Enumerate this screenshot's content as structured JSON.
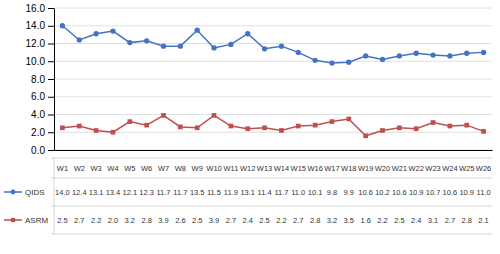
{
  "chart_data": {
    "type": "line",
    "categories": [
      "W1",
      "W2",
      "W3",
      "W4",
      "W5",
      "W6",
      "W7",
      "W8",
      "W9",
      "W10",
      "W11",
      "W12",
      "W13",
      "W14",
      "W15",
      "W16",
      "W17",
      "W18",
      "W19",
      "W20",
      "W21",
      "W22",
      "W23",
      "W24",
      "W25",
      "W26"
    ],
    "series": [
      {
        "name": "QIDS",
        "color": "#4472C4",
        "marker": "circle",
        "values": [
          14.0,
          12.4,
          13.1,
          13.4,
          12.1,
          12.3,
          11.7,
          11.7,
          13.5,
          11.5,
          11.9,
          13.1,
          11.4,
          11.7,
          11.0,
          10.1,
          9.8,
          9.9,
          10.6,
          10.2,
          10.6,
          10.9,
          10.7,
          10.6,
          10.9,
          11.0
        ],
        "value_labels": [
          "14.0",
          "12.4",
          "13.1",
          "13.4",
          "12.1",
          "12.3",
          "11.7",
          "11.7",
          "13.5",
          "11.5",
          "11.9",
          "13.1",
          "11.4",
          "11.7",
          "11.0",
          "10.1",
          "9.8",
          "9.9",
          "10.6",
          "10.2",
          "10.6",
          "10.9",
          "10.7",
          "10.6",
          "10.9",
          "11.0"
        ]
      },
      {
        "name": "ASRM",
        "color": "#C0504D",
        "marker": "square",
        "values": [
          2.5,
          2.7,
          2.2,
          2.0,
          3.2,
          2.8,
          3.9,
          2.6,
          2.5,
          3.9,
          2.7,
          2.4,
          2.5,
          2.2,
          2.7,
          2.8,
          3.2,
          3.5,
          1.6,
          2.2,
          2.5,
          2.4,
          3.1,
          2.7,
          2.8,
          2.1
        ],
        "value_labels": [
          "2.5",
          "2.7",
          "2.2",
          "2.0",
          "3.2",
          "2.8",
          "3.9",
          "2.6",
          "2.5",
          "3.9",
          "2.7",
          "2.4",
          "2.5",
          "2.2",
          "2.7",
          "2.8",
          "3.2",
          "3.5",
          "1.6",
          "2.2",
          "2.5",
          "2.4",
          "3.1",
          "2.7",
          "2.8",
          "2.1"
        ]
      }
    ],
    "ylim": [
      0.0,
      16.0
    ],
    "yticks": [
      {
        "value": 0,
        "label": "0.0"
      },
      {
        "value": 2,
        "label": "2.0"
      },
      {
        "value": 4,
        "label": "4.0"
      },
      {
        "value": 6,
        "label": "6.0"
      },
      {
        "value": 8,
        "label": "8.0"
      },
      {
        "value": 10,
        "label": "10.0"
      },
      {
        "value": 12,
        "label": "12.0"
      },
      {
        "value": 14,
        "label": "14.0"
      },
      {
        "value": 16,
        "label": "16.0"
      }
    ],
    "grid": true,
    "data_labels": true,
    "tick_labels": "y"
  }
}
